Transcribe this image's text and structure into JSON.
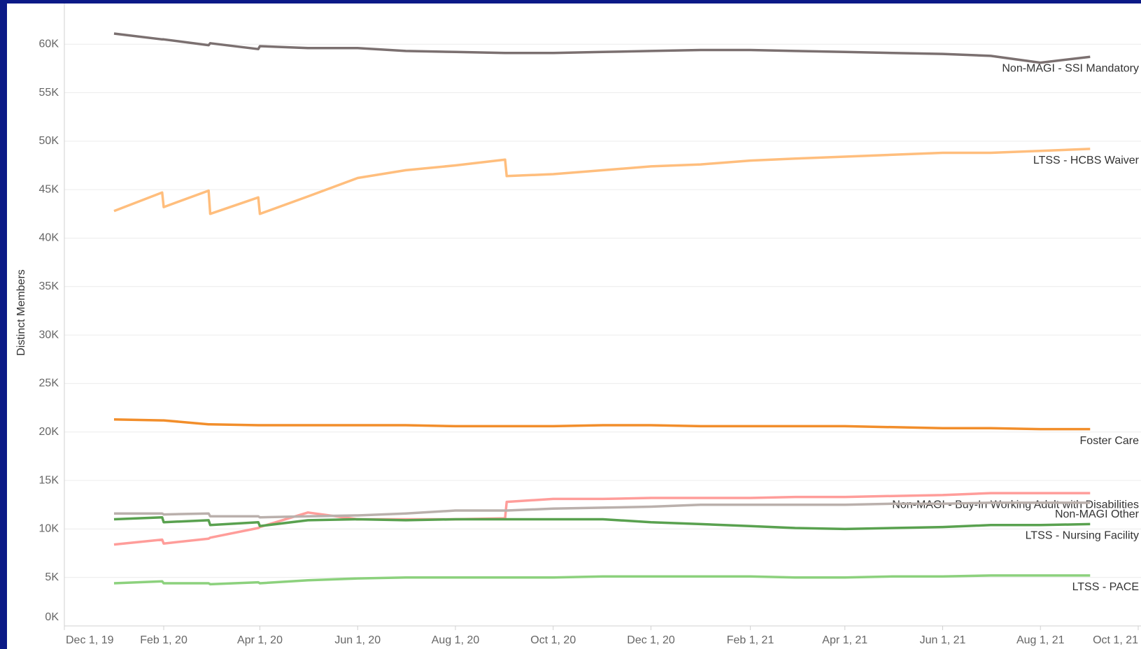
{
  "chart_data": {
    "type": "line",
    "y_label": "Distinct Members",
    "x": [
      "2020-01-01",
      "2020-01-31",
      "2020-02-01",
      "2020-02-29",
      "2020-03-01",
      "2020-03-31",
      "2020-04-01",
      "2020-05-01",
      "2020-06-01",
      "2020-07-01",
      "2020-08-01",
      "2020-09-01",
      "2020-09-02",
      "2020-10-01",
      "2020-11-01",
      "2020-12-01",
      "2021-01-01",
      "2021-02-01",
      "2021-03-01",
      "2021-04-01",
      "2021-05-01",
      "2021-06-01",
      "2021-07-01",
      "2021-08-01",
      "2021-09-01"
    ],
    "series": [
      {
        "name": "Non-MAGI - SSI Mandatory",
        "color": "#7b7070",
        "values": [
          61100,
          60500,
          60500,
          59900,
          60100,
          59500,
          59800,
          59600,
          59600,
          59300,
          59200,
          59100,
          59100,
          59100,
          59200,
          59300,
          59400,
          59400,
          59300,
          59200,
          59100,
          59000,
          58800,
          58100,
          58700
        ]
      },
      {
        "name": "LTSS - HCBS Waiver",
        "color": "#ffbe7d",
        "values": [
          42800,
          44700,
          43200,
          44900,
          42500,
          44200,
          42500,
          44300,
          46200,
          47000,
          47500,
          48100,
          46400,
          46600,
          47000,
          47400,
          47600,
          48000,
          48200,
          48400,
          48600,
          48800,
          48800,
          49000,
          49200
        ]
      },
      {
        "name": "Foster Care",
        "color": "#f28e2b",
        "values": [
          21300,
          21200,
          21200,
          20800,
          20800,
          20700,
          20700,
          20700,
          20700,
          20700,
          20600,
          20600,
          20600,
          20600,
          20700,
          20700,
          20600,
          20600,
          20600,
          20600,
          20500,
          20400,
          20400,
          20300,
          20300
        ]
      },
      {
        "name": "Non-MAGI - Buy-In Working Adult with Disabilities",
        "color": "#ff9d9a",
        "values": [
          8400,
          8900,
          8500,
          9000,
          9100,
          10100,
          10200,
          11700,
          11000,
          11000,
          11000,
          11100,
          12800,
          13100,
          13100,
          13200,
          13200,
          13200,
          13300,
          13300,
          13400,
          13500,
          13700,
          13700,
          13700
        ]
      },
      {
        "name": "Non-MAGI Other",
        "color": "#bab0ac",
        "values": [
          11600,
          11600,
          11500,
          11600,
          11300,
          11300,
          11200,
          11300,
          11400,
          11600,
          11900,
          11900,
          11900,
          12100,
          12200,
          12300,
          12500,
          12500,
          12500,
          12500,
          12600,
          12600,
          12700,
          12700,
          12700
        ]
      },
      {
        "name": "LTSS - Nursing Facility",
        "color": "#59a14f",
        "values": [
          11000,
          11200,
          10700,
          10900,
          10400,
          10700,
          10300,
          10900,
          11000,
          10900,
          11000,
          11000,
          11000,
          11000,
          11000,
          10700,
          10500,
          10300,
          10100,
          10000,
          10100,
          10200,
          10400,
          10400,
          10500
        ]
      },
      {
        "name": "LTSS - PACE",
        "color": "#8cd17d",
        "values": [
          4400,
          4600,
          4400,
          4400,
          4300,
          4500,
          4400,
          4700,
          4900,
          5000,
          5000,
          5000,
          5000,
          5000,
          5100,
          5100,
          5100,
          5100,
          5000,
          5000,
          5100,
          5100,
          5200,
          5200,
          5200
        ]
      }
    ],
    "xlim": [
      "2019-12-01",
      "2021-10-01"
    ],
    "xticks": [
      {
        "value": "2019-12-01",
        "label": "Dec 1, 19"
      },
      {
        "value": "2020-02-01",
        "label": "Feb 1, 20"
      },
      {
        "value": "2020-04-01",
        "label": "Apr 1, 20"
      },
      {
        "value": "2020-06-01",
        "label": "Jun 1, 20"
      },
      {
        "value": "2020-08-01",
        "label": "Aug 1, 20"
      },
      {
        "value": "2020-10-01",
        "label": "Oct 1, 20"
      },
      {
        "value": "2020-12-01",
        "label": "Dec 1, 20"
      },
      {
        "value": "2021-02-01",
        "label": "Feb 1, 21"
      },
      {
        "value": "2021-04-01",
        "label": "Apr 1, 21"
      },
      {
        "value": "2021-06-01",
        "label": "Jun 1, 21"
      },
      {
        "value": "2021-08-01",
        "label": "Aug 1, 21"
      },
      {
        "value": "2021-10-01",
        "label": "Oct 1, 21"
      }
    ],
    "ylim": [
      0,
      64200
    ],
    "yticks": [
      {
        "value": 0,
        "label": "0K"
      },
      {
        "value": 5000,
        "label": "5K"
      },
      {
        "value": 10000,
        "label": "10K"
      },
      {
        "value": 15000,
        "label": "15K"
      },
      {
        "value": 20000,
        "label": "20K"
      },
      {
        "value": 25000,
        "label": "25K"
      },
      {
        "value": 30000,
        "label": "30K"
      },
      {
        "value": 35000,
        "label": "35K"
      },
      {
        "value": 40000,
        "label": "40K"
      },
      {
        "value": 45000,
        "label": "45K"
      },
      {
        "value": 50000,
        "label": "50K"
      },
      {
        "value": 55000,
        "label": "55K"
      },
      {
        "value": 60000,
        "label": "60K"
      }
    ],
    "grid": true
  }
}
